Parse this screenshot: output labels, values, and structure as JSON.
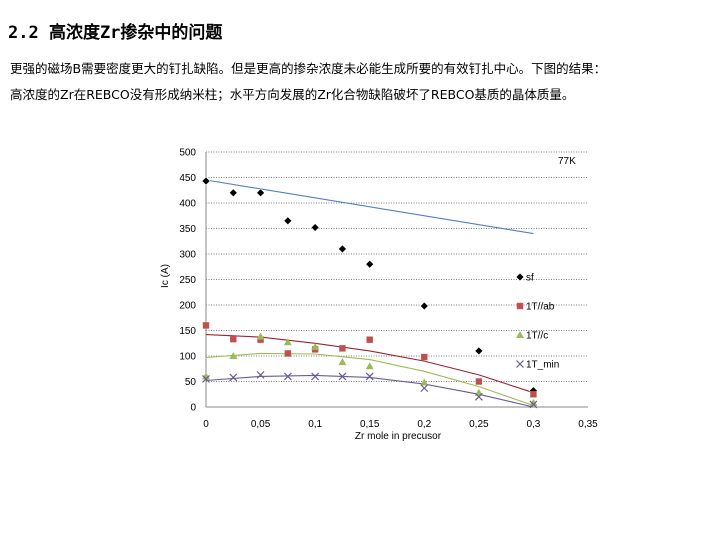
{
  "heading": "2.2  高浓度Zr掺杂中的问题",
  "paragraph_lines": [
    "更强的磁场B需要密度更大的钉扎缺陷。但是更高的掺杂浓度未必能生成所要的有效钉扎中心。下图的结果：",
    "高浓度的Zr在REBCO没有形成纳米柱；水平方向发展的Zr化合物缺陷破坏了REBCO基质的晶体质量。"
  ],
  "chart_data": {
    "type": "scatter",
    "annotation": "77K",
    "xlabel": "Zr mole in precusor",
    "ylabel": "Ic (A)",
    "xlim": [
      0,
      0.35
    ],
    "ylim": [
      0,
      500
    ],
    "x_ticks": [
      "0",
      "0,05",
      "0,1",
      "0,15",
      "0,2",
      "0,25",
      "0,3",
      "0,35"
    ],
    "y_ticks": [
      "0",
      "50",
      "100",
      "150",
      "200",
      "250",
      "300",
      "350",
      "400",
      "450",
      "500"
    ],
    "grid": "horizontal dotted",
    "legend_position": "right",
    "series": [
      {
        "name": "sf",
        "marker": "diamond",
        "color": "#000000",
        "line_color": "#4f81bd",
        "points": [
          [
            0,
            443
          ],
          [
            0.025,
            420
          ],
          [
            0.05,
            420
          ],
          [
            0.075,
            365
          ],
          [
            0.1,
            352
          ],
          [
            0.125,
            310
          ],
          [
            0.15,
            280
          ],
          [
            0.2,
            198
          ],
          [
            0.25,
            110
          ],
          [
            0.3,
            32
          ]
        ],
        "trend": [
          [
            0,
            445
          ],
          [
            0.3,
            340
          ]
        ]
      },
      {
        "name": "1T//ab",
        "marker": "square",
        "color": "#c0504d",
        "line_color": "#9b2335",
        "points": [
          [
            0,
            160
          ],
          [
            0.025,
            133
          ],
          [
            0.05,
            132
          ],
          [
            0.075,
            105
          ],
          [
            0.1,
            113
          ],
          [
            0.125,
            115
          ],
          [
            0.15,
            132
          ],
          [
            0.2,
            98
          ],
          [
            0.25,
            50
          ],
          [
            0.3,
            25
          ]
        ],
        "trend": [
          [
            0,
            142
          ],
          [
            0.05,
            137
          ],
          [
            0.1,
            125
          ],
          [
            0.15,
            110
          ],
          [
            0.2,
            90
          ],
          [
            0.25,
            63
          ],
          [
            0.3,
            28
          ]
        ]
      },
      {
        "name": "1T//c",
        "marker": "triangle",
        "color": "#9bbb59",
        "line_color": "#9bbb59",
        "points": [
          [
            0,
            60
          ],
          [
            0.025,
            100
          ],
          [
            0.05,
            138
          ],
          [
            0.075,
            127
          ],
          [
            0.1,
            118
          ],
          [
            0.125,
            88
          ],
          [
            0.15,
            80
          ],
          [
            0.2,
            48
          ],
          [
            0.25,
            28
          ],
          [
            0.3,
            8
          ]
        ],
        "trend": [
          [
            0,
            97
          ],
          [
            0.05,
            105
          ],
          [
            0.1,
            104
          ],
          [
            0.15,
            93
          ],
          [
            0.2,
            70
          ],
          [
            0.25,
            40
          ],
          [
            0.3,
            3
          ]
        ]
      },
      {
        "name": "1T_min",
        "marker": "x",
        "color": "#6b5b95",
        "line_color": "#6b5b95",
        "points": [
          [
            0,
            55
          ],
          [
            0.025,
            58
          ],
          [
            0.05,
            63
          ],
          [
            0.075,
            60
          ],
          [
            0.1,
            60
          ],
          [
            0.125,
            60
          ],
          [
            0.15,
            60
          ],
          [
            0.2,
            37
          ],
          [
            0.25,
            20
          ],
          [
            0.3,
            5
          ]
        ],
        "trend": [
          [
            0,
            52
          ],
          [
            0.05,
            60
          ],
          [
            0.1,
            62
          ],
          [
            0.15,
            58
          ],
          [
            0.2,
            45
          ],
          [
            0.25,
            25
          ],
          [
            0.3,
            0
          ]
        ]
      }
    ]
  }
}
